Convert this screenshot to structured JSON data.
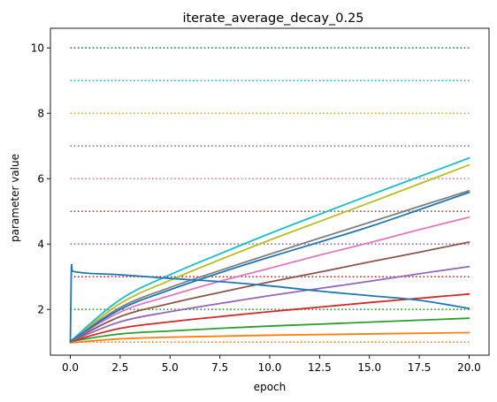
{
  "chart_data": {
    "type": "line",
    "title": "iterate_average_decay_0.25",
    "xlabel": "epoch",
    "ylabel": "parameter value",
    "xlim": [
      -1.0,
      21.0
    ],
    "ylim": [
      0.6,
      10.6
    ],
    "xticks": [
      0.0,
      2.5,
      5.0,
      7.5,
      10.0,
      12.5,
      15.0,
      17.5,
      20.0
    ],
    "xtick_labels": [
      "0.0",
      "2.5",
      "5.0",
      "7.5",
      "10.0",
      "12.5",
      "15.0",
      "17.5",
      "20.0"
    ],
    "yticks": [
      2,
      4,
      6,
      8,
      10
    ],
    "ytick_labels": [
      "2",
      "4",
      "6",
      "8",
      "10"
    ],
    "grid": false,
    "legend": "none",
    "reference_lines": [
      {
        "y": 1,
        "color": "#ff7f0e"
      },
      {
        "y": 2,
        "color": "#2ca02c"
      },
      {
        "y": 3,
        "color": "#d62728"
      },
      {
        "y": 4,
        "color": "#9467bd"
      },
      {
        "y": 5,
        "color": "#8c564b"
      },
      {
        "y": 6,
        "color": "#e377c2"
      },
      {
        "y": 7,
        "color": "#7f7f7f"
      },
      {
        "y": 8,
        "color": "#bcbd22"
      },
      {
        "y": 9,
        "color": "#17becf"
      },
      {
        "y": 10,
        "color": "#1f77b4"
      }
    ],
    "series": [
      {
        "color": "#ff7f0e",
        "x": [
          0,
          2.5,
          5,
          7.5,
          10,
          12.5,
          15,
          17.5,
          20
        ],
        "y": [
          0.98,
          1.1,
          1.15,
          1.18,
          1.21,
          1.23,
          1.25,
          1.27,
          1.29
        ]
      },
      {
        "color": "#2ca02c",
        "x": [
          0,
          2.5,
          5,
          7.5,
          10,
          12.5,
          15,
          17.5,
          20
        ],
        "y": [
          1.02,
          1.25,
          1.34,
          1.42,
          1.49,
          1.55,
          1.61,
          1.67,
          1.73
        ]
      },
      {
        "color": "#d62728",
        "x": [
          0,
          2.5,
          5,
          7.5,
          10,
          12.5,
          15,
          17.5,
          20
        ],
        "y": [
          1.02,
          1.42,
          1.62,
          1.78,
          1.93,
          2.07,
          2.21,
          2.34,
          2.47
        ]
      },
      {
        "color": "#9467bd",
        "x": [
          0,
          2.5,
          5,
          7.5,
          10,
          12.5,
          15,
          17.5,
          20
        ],
        "y": [
          1.02,
          1.62,
          1.93,
          2.18,
          2.42,
          2.64,
          2.86,
          3.09,
          3.31
        ]
      },
      {
        "color": "#8c564b",
        "x": [
          0,
          2.5,
          5,
          7.5,
          10,
          12.5,
          15,
          17.5,
          20
        ],
        "y": [
          1.02,
          1.78,
          2.18,
          2.52,
          2.84,
          3.14,
          3.45,
          3.75,
          4.06
        ]
      },
      {
        "color": "#e377c2",
        "x": [
          0,
          2.5,
          5,
          7.5,
          10,
          12.5,
          15,
          17.5,
          20
        ],
        "y": [
          1.02,
          1.92,
          2.42,
          2.86,
          3.26,
          3.66,
          4.04,
          4.44,
          4.82
        ]
      },
      {
        "color": "#7f7f7f",
        "x": [
          0,
          2.5,
          5,
          7.5,
          10,
          12.5,
          15,
          17.5,
          20
        ],
        "y": [
          1.02,
          2.06,
          2.67,
          3.19,
          3.69,
          4.18,
          4.66,
          5.15,
          5.63
        ]
      },
      {
        "color": "#bcbd22",
        "x": [
          0,
          2.5,
          5,
          7.5,
          10,
          12.5,
          15,
          17.5,
          20
        ],
        "y": [
          1.02,
          2.18,
          2.89,
          3.52,
          4.12,
          4.69,
          5.26,
          5.84,
          6.42
        ]
      },
      {
        "color": "#17becf",
        "x": [
          0,
          2.5,
          5,
          7.5,
          10,
          12.5,
          15,
          17.5,
          20
        ],
        "y": [
          1.02,
          2.3,
          3.06,
          3.7,
          4.32,
          4.91,
          5.49,
          6.06,
          6.63
        ]
      },
      {
        "color": "#1f77b4",
        "x": [
          0,
          0.05,
          0.1,
          0.25,
          1,
          2.5,
          5,
          7.5,
          10,
          12.5,
          15,
          17.5,
          20
        ],
        "y": [
          1.0,
          3.2,
          3.18,
          3.15,
          3.1,
          3.06,
          2.95,
          2.85,
          2.72,
          2.56,
          2.42,
          2.28,
          2.03
        ]
      },
      {
        "color": "#1f77b4",
        "x": [
          0,
          2.5,
          5,
          7.5,
          10,
          12.5,
          15,
          17.5,
          20
        ],
        "y": [
          1.02,
          2.0,
          2.6,
          3.12,
          3.6,
          4.06,
          4.53,
          5.05,
          5.58
        ]
      }
    ]
  }
}
